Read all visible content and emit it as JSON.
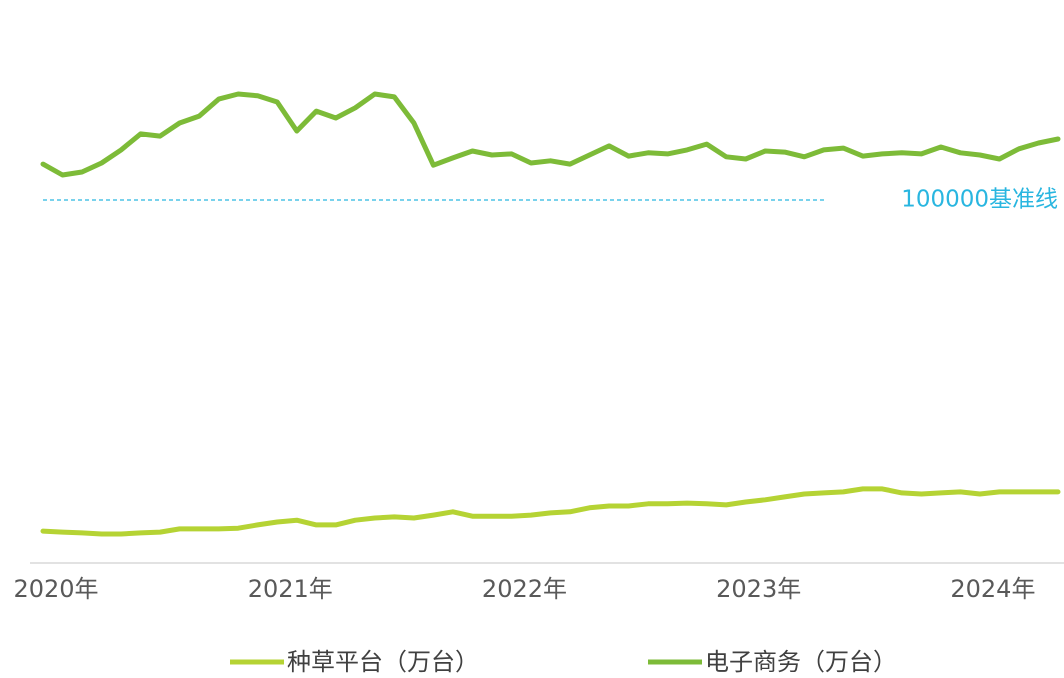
{
  "chart_data": {
    "type": "line",
    "categories": [
      "2020年",
      null,
      null,
      null,
      null,
      null,
      null,
      null,
      null,
      null,
      null,
      null,
      "2021年",
      null,
      null,
      null,
      null,
      null,
      null,
      null,
      null,
      null,
      null,
      null,
      "2022年",
      null,
      null,
      null,
      null,
      null,
      null,
      null,
      null,
      null,
      null,
      null,
      "2023年",
      null,
      null,
      null,
      null,
      null,
      null,
      null,
      null,
      null,
      null,
      null,
      "2024年",
      null,
      null,
      null,
      null
    ],
    "series": [
      {
        "name": "种草平台（万台）",
        "color": "#b5d334",
        "values": [
          8800,
          8500,
          8300,
          8000,
          8000,
          8300,
          8500,
          9400,
          9400,
          9400,
          9600,
          10500,
          11300,
          11800,
          10500,
          10500,
          11800,
          12400,
          12700,
          12400,
          13200,
          14100,
          12900,
          12900,
          12900,
          13200,
          13800,
          14100,
          15200,
          15700,
          15700,
          16300,
          16300,
          16500,
          16300,
          16000,
          16800,
          17400,
          18200,
          19000,
          19300,
          19600,
          20400,
          20400,
          19300,
          19000,
          19300,
          19600,
          19000,
          19600,
          19600,
          19600,
          19600
        ]
      },
      {
        "name": "电子商务（万台）",
        "color": "#7dbb38",
        "values": [
          109900,
          106900,
          107700,
          110200,
          113800,
          118200,
          117600,
          121200,
          123100,
          127800,
          129200,
          128700,
          127000,
          119000,
          124500,
          122600,
          125400,
          129200,
          128400,
          121200,
          109600,
          111600,
          113500,
          112400,
          112700,
          110200,
          110800,
          109900,
          112400,
          114900,
          112100,
          113000,
          112700,
          113800,
          115400,
          111900,
          111300,
          113500,
          113200,
          111900,
          113800,
          114300,
          112100,
          112700,
          113000,
          112700,
          114600,
          113000,
          112400,
          111300,
          114100,
          115700,
          116800
        ]
      }
    ],
    "ylim": [
      0,
      150000
    ],
    "reference_line": {
      "value": 100000,
      "label": "100000基准线",
      "color": "#29b6e0"
    },
    "legend": "bottom"
  }
}
